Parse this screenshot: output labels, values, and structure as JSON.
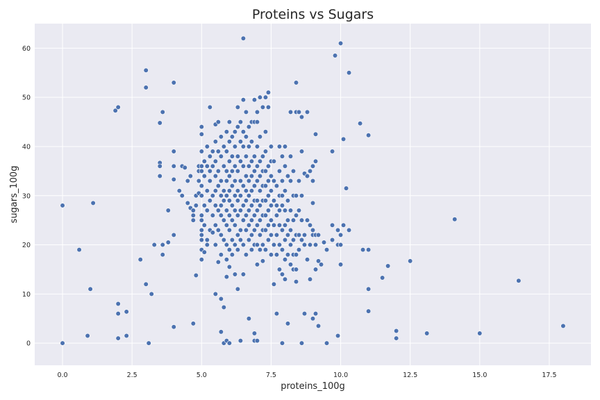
{
  "chart_data": {
    "type": "scatter",
    "title": "Proteins vs Sugars",
    "xlabel": "proteins_100g",
    "ylabel": "sugars_100g",
    "xlim": [
      -1.0,
      19.0
    ],
    "ylim": [
      -4.5,
      65.0
    ],
    "xticks": [
      0.0,
      2.5,
      5.0,
      7.5,
      10.0,
      12.5,
      15.0,
      17.5
    ],
    "xtick_labels": [
      "0.0",
      "2.5",
      "5.0",
      "7.5",
      "10.0",
      "12.5",
      "15.0",
      "17.5"
    ],
    "yticks": [
      0,
      10,
      20,
      30,
      40,
      50,
      60
    ],
    "ytick_labels": [
      "0",
      "10",
      "20",
      "30",
      "40",
      "50",
      "60"
    ],
    "grid": true,
    "colors": {
      "marker": "#4c72b0",
      "marker_edge": "#ffffff",
      "plot_bg": "#eaeaf2",
      "grid": "#ffffff",
      "text": "#262626"
    },
    "points": [
      [
        0.0,
        28.0
      ],
      [
        0.0,
        0.0
      ],
      [
        0.6,
        19.0
      ],
      [
        0.9,
        1.5
      ],
      [
        1.0,
        11.0
      ],
      [
        1.1,
        28.5
      ],
      [
        1.9,
        47.3
      ],
      [
        2.0,
        48.0
      ],
      [
        2.0,
        8.0
      ],
      [
        2.0,
        6.0
      ],
      [
        2.0,
        1.0
      ],
      [
        2.3,
        6.4
      ],
      [
        2.3,
        1.5
      ],
      [
        2.8,
        17.0
      ],
      [
        3.0,
        55.5
      ],
      [
        3.0,
        52.0
      ],
      [
        3.0,
        12.0
      ],
      [
        3.1,
        0.0
      ],
      [
        3.2,
        10.0
      ],
      [
        3.3,
        20.0
      ],
      [
        3.5,
        44.8
      ],
      [
        3.5,
        36.7
      ],
      [
        3.5,
        36.0
      ],
      [
        3.5,
        34.0
      ],
      [
        3.6,
        47.0
      ],
      [
        3.6,
        20.0
      ],
      [
        3.6,
        18.0
      ],
      [
        3.8,
        20.5
      ],
      [
        3.8,
        27.0
      ],
      [
        4.0,
        53.0
      ],
      [
        4.0,
        39.0
      ],
      [
        4.0,
        36.0
      ],
      [
        4.0,
        33.3
      ],
      [
        4.0,
        22.0
      ],
      [
        4.0,
        3.3
      ],
      [
        4.2,
        31.0
      ],
      [
        4.3,
        36.0
      ],
      [
        4.3,
        30.0
      ],
      [
        4.4,
        35.7
      ],
      [
        4.5,
        28.5
      ],
      [
        4.5,
        33.0
      ],
      [
        4.6,
        34.0
      ],
      [
        4.6,
        27.5
      ],
      [
        4.7,
        27.0
      ],
      [
        4.7,
        26.0
      ],
      [
        4.7,
        25.0
      ],
      [
        4.7,
        4.0
      ],
      [
        4.8,
        28.0
      ],
      [
        4.8,
        13.8
      ],
      [
        4.8,
        30.0
      ],
      [
        4.9,
        36.0
      ],
      [
        4.9,
        35.0
      ],
      [
        4.9,
        33.0
      ],
      [
        4.9,
        30.5
      ],
      [
        5.0,
        44.0
      ],
      [
        5.0,
        42.5
      ],
      [
        5.0,
        39.0
      ],
      [
        5.0,
        36.0
      ],
      [
        5.0,
        35.0
      ],
      [
        5.0,
        32.0
      ],
      [
        5.0,
        30.0
      ],
      [
        5.0,
        26.0
      ],
      [
        5.0,
        25.0
      ],
      [
        5.0,
        23.0
      ],
      [
        5.0,
        22.0
      ],
      [
        5.0,
        21.0
      ],
      [
        5.0,
        19.0
      ],
      [
        5.0,
        17.0
      ],
      [
        5.1,
        37.0
      ],
      [
        5.1,
        34.0
      ],
      [
        5.1,
        28.0
      ],
      [
        5.1,
        24.0
      ],
      [
        5.1,
        18.5
      ],
      [
        5.2,
        40.0
      ],
      [
        5.2,
        36.0
      ],
      [
        5.2,
        31.0
      ],
      [
        5.2,
        27.0
      ],
      [
        5.2,
        21.0
      ],
      [
        5.2,
        20.0
      ],
      [
        5.3,
        48.0
      ],
      [
        5.3,
        38.0
      ],
      [
        5.3,
        35.0
      ],
      [
        5.3,
        33.0
      ],
      [
        5.3,
        29.0
      ],
      [
        5.3,
        23.0
      ],
      [
        5.4,
        39.0
      ],
      [
        5.4,
        36.0
      ],
      [
        5.4,
        30.0
      ],
      [
        5.4,
        26.0
      ],
      [
        5.4,
        22.5
      ],
      [
        5.5,
        44.5
      ],
      [
        5.5,
        41.0
      ],
      [
        5.5,
        37.0
      ],
      [
        5.5,
        34.0
      ],
      [
        5.5,
        31.0
      ],
      [
        5.5,
        28.0
      ],
      [
        5.5,
        24.0
      ],
      [
        5.5,
        20.0
      ],
      [
        5.5,
        10.0
      ],
      [
        5.6,
        45.0
      ],
      [
        5.6,
        39.0
      ],
      [
        5.6,
        35.0
      ],
      [
        5.6,
        32.0
      ],
      [
        5.6,
        27.0
      ],
      [
        5.6,
        23.0
      ],
      [
        5.6,
        16.5
      ],
      [
        5.7,
        42.0
      ],
      [
        5.7,
        38.0
      ],
      [
        5.7,
        33.0
      ],
      [
        5.7,
        30.0
      ],
      [
        5.7,
        28.0
      ],
      [
        5.7,
        26.0
      ],
      [
        5.7,
        22.0
      ],
      [
        5.7,
        18.0
      ],
      [
        5.7,
        9.0
      ],
      [
        5.7,
        2.3
      ],
      [
        5.8,
        40.0
      ],
      [
        5.8,
        36.0
      ],
      [
        5.8,
        31.0
      ],
      [
        5.8,
        29.0
      ],
      [
        5.8,
        25.0
      ],
      [
        5.8,
        21.0
      ],
      [
        5.8,
        7.3
      ],
      [
        5.8,
        0.0
      ],
      [
        5.9,
        43.0
      ],
      [
        5.9,
        39.0
      ],
      [
        5.9,
        35.0
      ],
      [
        5.9,
        33.0
      ],
      [
        5.9,
        30.0
      ],
      [
        5.9,
        27.0
      ],
      [
        5.9,
        24.0
      ],
      [
        5.9,
        20.0
      ],
      [
        5.9,
        17.0
      ],
      [
        5.9,
        13.5
      ],
      [
        5.9,
        0.5
      ],
      [
        6.0,
        45.0
      ],
      [
        6.0,
        41.0
      ],
      [
        6.0,
        37.0
      ],
      [
        6.0,
        34.0
      ],
      [
        6.0,
        31.0
      ],
      [
        6.0,
        29.0
      ],
      [
        6.0,
        26.0
      ],
      [
        6.0,
        23.0
      ],
      [
        6.0,
        19.0
      ],
      [
        6.0,
        15.5
      ],
      [
        6.0,
        0.0
      ],
      [
        6.1,
        42.0
      ],
      [
        6.1,
        38.0
      ],
      [
        6.1,
        35.0
      ],
      [
        6.1,
        32.0
      ],
      [
        6.1,
        28.0
      ],
      [
        6.1,
        25.0
      ],
      [
        6.1,
        21.0
      ],
      [
        6.1,
        18.0
      ],
      [
        6.2,
        43.0
      ],
      [
        6.2,
        40.0
      ],
      [
        6.2,
        36.0
      ],
      [
        6.2,
        33.0
      ],
      [
        6.2,
        30.0
      ],
      [
        6.2,
        27.0
      ],
      [
        6.2,
        24.0
      ],
      [
        6.2,
        20.0
      ],
      [
        6.2,
        14.0
      ],
      [
        6.3,
        48.0
      ],
      [
        6.3,
        44.0
      ],
      [
        6.3,
        38.0
      ],
      [
        6.3,
        35.0
      ],
      [
        6.3,
        31.0
      ],
      [
        6.3,
        29.0
      ],
      [
        6.3,
        26.0
      ],
      [
        6.3,
        22.0
      ],
      [
        6.3,
        19.0
      ],
      [
        6.3,
        11.0
      ],
      [
        6.4,
        45.0
      ],
      [
        6.4,
        41.0
      ],
      [
        6.4,
        37.0
      ],
      [
        6.4,
        33.0
      ],
      [
        6.4,
        30.0
      ],
      [
        6.4,
        27.0
      ],
      [
        6.4,
        23.0
      ],
      [
        6.4,
        21.0
      ],
      [
        6.4,
        0.5
      ],
      [
        6.5,
        62.0
      ],
      [
        6.5,
        49.5
      ],
      [
        6.5,
        43.0
      ],
      [
        6.5,
        40.0
      ],
      [
        6.5,
        36.0
      ],
      [
        6.5,
        32.0
      ],
      [
        6.5,
        28.0
      ],
      [
        6.5,
        25.0
      ],
      [
        6.5,
        20.0
      ],
      [
        6.5,
        14.0
      ],
      [
        6.6,
        47.0
      ],
      [
        6.6,
        42.0
      ],
      [
        6.6,
        38.0
      ],
      [
        6.6,
        34.0
      ],
      [
        6.6,
        31.0
      ],
      [
        6.6,
        29.0
      ],
      [
        6.6,
        26.0
      ],
      [
        6.6,
        23.0
      ],
      [
        6.6,
        18.0
      ],
      [
        6.7,
        44.0
      ],
      [
        6.7,
        40.0
      ],
      [
        6.7,
        36.0
      ],
      [
        6.7,
        33.0
      ],
      [
        6.7,
        30.0
      ],
      [
        6.7,
        27.0
      ],
      [
        6.7,
        24.0
      ],
      [
        6.7,
        21.0
      ],
      [
        6.7,
        5.0
      ],
      [
        6.8,
        45.0
      ],
      [
        6.8,
        41.0
      ],
      [
        6.8,
        37.0
      ],
      [
        6.8,
        34.0
      ],
      [
        6.8,
        31.0
      ],
      [
        6.8,
        28.0
      ],
      [
        6.8,
        25.0
      ],
      [
        6.8,
        22.0
      ],
      [
        6.8,
        19.0
      ],
      [
        6.9,
        49.5
      ],
      [
        6.9,
        45.0
      ],
      [
        6.9,
        38.0
      ],
      [
        6.9,
        35.0
      ],
      [
        6.9,
        32.0
      ],
      [
        6.9,
        29.0
      ],
      [
        6.9,
        26.0
      ],
      [
        6.9,
        23.0
      ],
      [
        6.9,
        20.0
      ],
      [
        6.9,
        2.0
      ],
      [
        6.9,
        0.5
      ],
      [
        7.0,
        47.0
      ],
      [
        7.0,
        45.0
      ],
      [
        7.0,
        40.0
      ],
      [
        7.0,
        36.0
      ],
      [
        7.0,
        33.0
      ],
      [
        7.0,
        29.0
      ],
      [
        7.0,
        27.0
      ],
      [
        7.0,
        24.0
      ],
      [
        7.0,
        20.0
      ],
      [
        7.0,
        16.0
      ],
      [
        7.0,
        0.5
      ],
      [
        7.1,
        50.0
      ],
      [
        7.1,
        42.0
      ],
      [
        7.1,
        37.0
      ],
      [
        7.1,
        34.0
      ],
      [
        7.1,
        31.0
      ],
      [
        7.1,
        28.0
      ],
      [
        7.1,
        25.0
      ],
      [
        7.1,
        22.0
      ],
      [
        7.1,
        19.0
      ],
      [
        7.2,
        48.0
      ],
      [
        7.2,
        38.0
      ],
      [
        7.2,
        35.0
      ],
      [
        7.2,
        32.0
      ],
      [
        7.2,
        29.0
      ],
      [
        7.2,
        26.0
      ],
      [
        7.2,
        23.0
      ],
      [
        7.2,
        20.0
      ],
      [
        7.2,
        16.7
      ],
      [
        7.3,
        50.0
      ],
      [
        7.3,
        43.0
      ],
      [
        7.3,
        39.0
      ],
      [
        7.3,
        35.0
      ],
      [
        7.3,
        32.0
      ],
      [
        7.3,
        29.0
      ],
      [
        7.3,
        26.0
      ],
      [
        7.3,
        23.0
      ],
      [
        7.3,
        19.0
      ],
      [
        7.4,
        51.0
      ],
      [
        7.4,
        48.0
      ],
      [
        7.4,
        36.0
      ],
      [
        7.4,
        33.0
      ],
      [
        7.4,
        30.0
      ],
      [
        7.4,
        27.0
      ],
      [
        7.4,
        24.0
      ],
      [
        7.4,
        21.0
      ],
      [
        7.5,
        40.0
      ],
      [
        7.5,
        37.0
      ],
      [
        7.5,
        34.0
      ],
      [
        7.5,
        31.0
      ],
      [
        7.5,
        28.0
      ],
      [
        7.5,
        25.0
      ],
      [
        7.5,
        22.0
      ],
      [
        7.5,
        18.0
      ],
      [
        7.6,
        37.0
      ],
      [
        7.6,
        33.0
      ],
      [
        7.6,
        29.0
      ],
      [
        7.6,
        24.0
      ],
      [
        7.6,
        20.0
      ],
      [
        7.6,
        12.0
      ],
      [
        7.7,
        32.0
      ],
      [
        7.7,
        28.0
      ],
      [
        7.7,
        26.0
      ],
      [
        7.7,
        22.0
      ],
      [
        7.7,
        18.0
      ],
      [
        7.7,
        6.0
      ],
      [
        7.8,
        40.0
      ],
      [
        7.8,
        35.0
      ],
      [
        7.8,
        30.0
      ],
      [
        7.8,
        27.0
      ],
      [
        7.8,
        24.0
      ],
      [
        7.8,
        20.0
      ],
      [
        7.8,
        15.0
      ],
      [
        7.9,
        38.0
      ],
      [
        7.9,
        33.0
      ],
      [
        7.9,
        30.0
      ],
      [
        7.9,
        28.0
      ],
      [
        7.9,
        23.0
      ],
      [
        7.9,
        19.0
      ],
      [
        7.9,
        14.0
      ],
      [
        7.9,
        0.0
      ],
      [
        8.0,
        40.0
      ],
      [
        8.0,
        36.0
      ],
      [
        8.0,
        31.0
      ],
      [
        8.0,
        27.0
      ],
      [
        8.0,
        24.0
      ],
      [
        8.0,
        21.0
      ],
      [
        8.0,
        17.0
      ],
      [
        8.0,
        13.0
      ],
      [
        8.1,
        34.0
      ],
      [
        8.1,
        29.0
      ],
      [
        8.1,
        25.0
      ],
      [
        8.1,
        22.0
      ],
      [
        8.1,
        18.0
      ],
      [
        8.1,
        4.0
      ],
      [
        8.2,
        47.0
      ],
      [
        8.2,
        38.0
      ],
      [
        8.2,
        33.0
      ],
      [
        8.2,
        27.0
      ],
      [
        8.2,
        23.0
      ],
      [
        8.2,
        20.0
      ],
      [
        8.2,
        16.0
      ],
      [
        8.3,
        35.0
      ],
      [
        8.3,
        30.0
      ],
      [
        8.3,
        25.0
      ],
      [
        8.3,
        21.0
      ],
      [
        8.3,
        18.0
      ],
      [
        8.3,
        15.0
      ],
      [
        8.4,
        53.0
      ],
      [
        8.4,
        47.0
      ],
      [
        8.4,
        30.0
      ],
      [
        8.4,
        26.0
      ],
      [
        8.4,
        22.0
      ],
      [
        8.4,
        18.0
      ],
      [
        8.4,
        15.0
      ],
      [
        8.4,
        12.5
      ],
      [
        8.5,
        47.0
      ],
      [
        8.5,
        33.0
      ],
      [
        8.5,
        27.0
      ],
      [
        8.5,
        22.0
      ],
      [
        8.5,
        19.0
      ],
      [
        8.6,
        46.0
      ],
      [
        8.6,
        39.0
      ],
      [
        8.6,
        30.0
      ],
      [
        8.6,
        25.0
      ],
      [
        8.6,
        21.0
      ],
      [
        8.6,
        0.0
      ],
      [
        8.7,
        34.5
      ],
      [
        8.7,
        22.0
      ],
      [
        8.7,
        20.0
      ],
      [
        8.7,
        6.0
      ],
      [
        8.8,
        47.0
      ],
      [
        8.8,
        34.0
      ],
      [
        8.8,
        25.0
      ],
      [
        8.8,
        17.0
      ],
      [
        8.9,
        35.0
      ],
      [
        8.9,
        24.0
      ],
      [
        8.9,
        20.0
      ],
      [
        8.9,
        13.0
      ],
      [
        9.0,
        36.0
      ],
      [
        9.0,
        33.0
      ],
      [
        9.0,
        28.5
      ],
      [
        9.0,
        23.0
      ],
      [
        9.0,
        22.0
      ],
      [
        9.0,
        5.0
      ],
      [
        9.1,
        42.5
      ],
      [
        9.1,
        37.0
      ],
      [
        9.1,
        22.0
      ],
      [
        9.1,
        20.0
      ],
      [
        9.1,
        15.0
      ],
      [
        9.1,
        6.0
      ],
      [
        9.2,
        22.0
      ],
      [
        9.2,
        16.7
      ],
      [
        9.2,
        3.5
      ],
      [
        9.3,
        16.0
      ],
      [
        9.4,
        20.5
      ],
      [
        9.5,
        19.0
      ],
      [
        9.5,
        0.0
      ],
      [
        9.7,
        39.0
      ],
      [
        9.7,
        24.0
      ],
      [
        9.7,
        21.0
      ],
      [
        9.8,
        58.5
      ],
      [
        9.9,
        23.0
      ],
      [
        9.9,
        20.0
      ],
      [
        9.9,
        1.5
      ],
      [
        10.0,
        61.0
      ],
      [
        10.0,
        22.0
      ],
      [
        10.0,
        20.0
      ],
      [
        10.0,
        16.0
      ],
      [
        10.1,
        41.5
      ],
      [
        10.1,
        24.0
      ],
      [
        10.2,
        31.5
      ],
      [
        10.3,
        55.0
      ],
      [
        10.3,
        23.0
      ],
      [
        10.7,
        44.7
      ],
      [
        10.8,
        19.0
      ],
      [
        11.0,
        42.3
      ],
      [
        11.0,
        19.0
      ],
      [
        11.0,
        11.0
      ],
      [
        11.0,
        6.5
      ],
      [
        11.5,
        13.3
      ],
      [
        11.7,
        15.7
      ],
      [
        12.0,
        2.5
      ],
      [
        12.0,
        1.0
      ],
      [
        12.5,
        16.7
      ],
      [
        13.1,
        2.0
      ],
      [
        14.1,
        25.2
      ],
      [
        15.0,
        2.0
      ],
      [
        16.4,
        12.7
      ],
      [
        18.0,
        3.5
      ]
    ]
  }
}
